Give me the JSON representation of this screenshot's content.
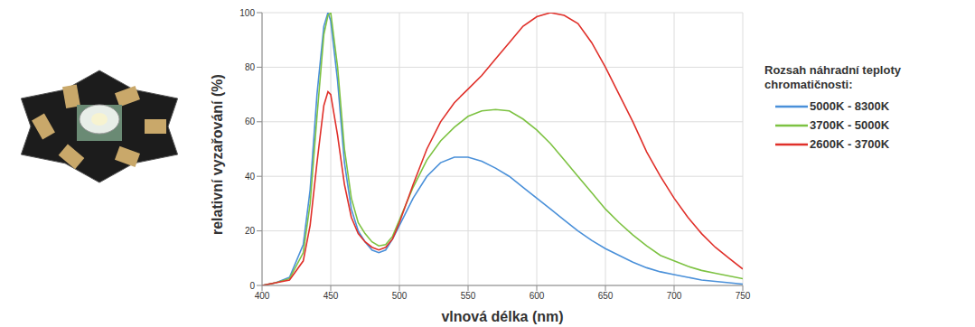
{
  "chart_data": {
    "type": "line",
    "x_label": "vlnová délka (nm)",
    "y_label": "relativní vyzařování (%)",
    "legend_title": "Rozsah náhradní teploty chromatičnosti:",
    "legend": "right",
    "grid": true,
    "xlim": [
      400,
      750
    ],
    "xticks": [
      400,
      450,
      500,
      550,
      600,
      650,
      700,
      750
    ],
    "ylim": [
      0,
      100
    ],
    "yticks": [
      0,
      20,
      40,
      60,
      80,
      100
    ],
    "x": [
      400,
      410,
      420,
      430,
      435,
      440,
      445,
      448,
      450,
      455,
      460,
      465,
      470,
      475,
      480,
      485,
      490,
      495,
      500,
      510,
      520,
      530,
      540,
      550,
      560,
      570,
      580,
      590,
      600,
      610,
      620,
      630,
      640,
      650,
      660,
      670,
      680,
      690,
      700,
      710,
      720,
      730,
      740,
      750
    ],
    "series": [
      {
        "name": "5000K - 8300K",
        "color": "#4a90d9",
        "values": [
          0,
          1,
          3,
          15,
          35,
          70,
          95,
          100,
          97,
          75,
          45,
          28,
          20,
          16,
          13,
          12,
          13,
          17,
          22,
          32,
          40,
          45,
          47,
          47,
          45.5,
          43,
          40,
          36,
          32,
          28,
          24,
          20,
          16.5,
          13.5,
          11,
          8.5,
          6.5,
          5,
          4,
          3,
          2,
          1.5,
          1,
          0.5
        ]
      },
      {
        "name": "3700K - 5000K",
        "color": "#7dc242",
        "values": [
          0,
          1,
          2.5,
          12,
          30,
          62,
          92,
          99,
          100,
          80,
          50,
          32,
          23,
          19,
          16,
          14.5,
          15,
          18,
          24,
          36,
          46,
          53,
          58,
          62,
          64,
          64.5,
          64,
          61,
          57,
          52,
          46,
          40,
          34,
          28,
          23,
          18.5,
          14.5,
          11,
          9,
          7,
          5.5,
          4.5,
          3.5,
          2.5
        ]
      },
      {
        "name": "2600K - 3700K",
        "color": "#e0302a",
        "values": [
          0,
          1,
          2,
          9,
          22,
          45,
          66,
          71,
          70,
          55,
          37,
          25,
          19,
          16,
          14,
          13,
          14,
          17,
          23,
          37,
          50,
          60,
          67,
          72,
          77,
          83,
          89,
          95,
          98.5,
          100,
          99,
          96,
          89,
          80,
          70,
          60,
          49,
          40,
          32,
          25,
          19,
          14,
          10,
          6
        ]
      }
    ]
  }
}
